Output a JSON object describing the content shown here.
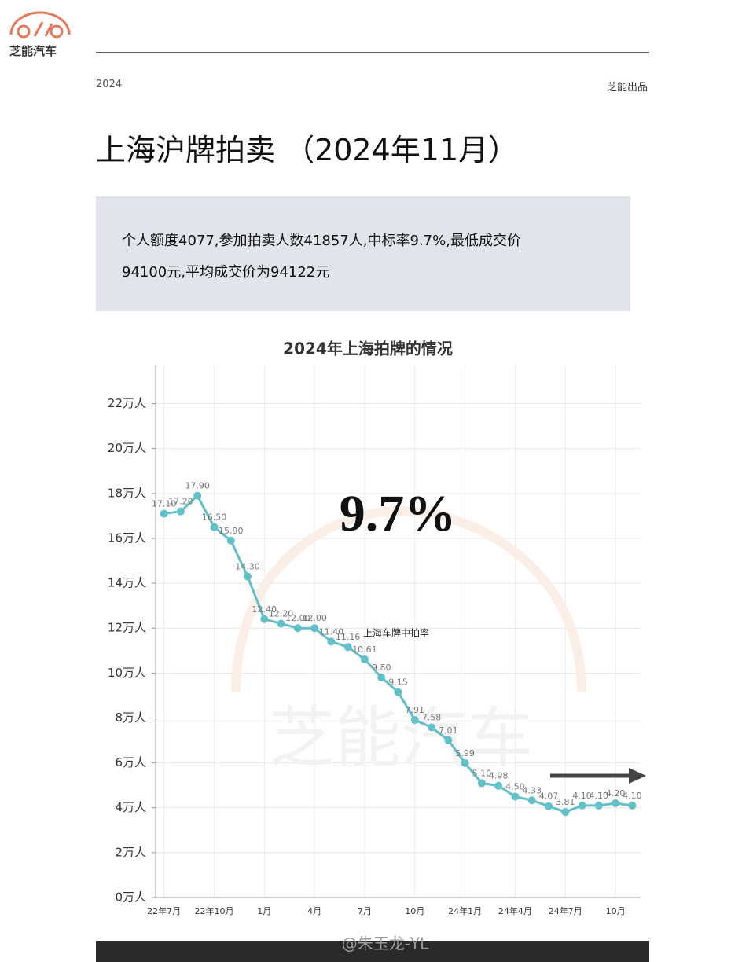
{
  "header": {
    "brand": "芝能汽车",
    "year": "2024",
    "publisher": "芝能出品"
  },
  "title": "上海沪牌拍卖 （2024年11月）",
  "summary": [
    "个人额度4077,参加拍卖人数41857人,中标率9.7%,最低成交价",
    "94100元,平均成交价为94122元"
  ],
  "chart_data": {
    "type": "line",
    "title": "2024年上海拍牌的情况",
    "annotation": "9.7%",
    "watermark": "芝能汽车",
    "categories": [
      "22年7月",
      null,
      null,
      "22年10月",
      null,
      null,
      "1月",
      null,
      null,
      "4月",
      null,
      null,
      "7月",
      null,
      null,
      "10月",
      null,
      null,
      "24年1月",
      null,
      null,
      "24年4月",
      null,
      null,
      "24年7月",
      null,
      null,
      "10月",
      null
    ],
    "series": [
      {
        "name": "上海车牌中拍率",
        "color": "#62c0c9",
        "values": [
          17.1,
          17.2,
          17.9,
          16.5,
          15.9,
          14.3,
          12.4,
          12.2,
          12.0,
          12.0,
          11.4,
          11.16,
          10.61,
          9.8,
          9.15,
          7.91,
          7.58,
          7.01,
          5.99,
          5.1,
          4.98,
          4.5,
          4.33,
          4.07,
          3.81,
          4.1,
          4.1,
          4.2,
          4.1
        ],
        "value_labels": [
          "17.10",
          "17.20",
          "17.90",
          "16.50",
          "15.90",
          "14.30",
          "12.40",
          "12.20",
          "12.00",
          "12.00",
          "11.40",
          "11.16",
          "10.61",
          "9.80",
          "9.15",
          "7.91",
          "7.58",
          "7.01",
          "5.99",
          "5.10",
          "4.98",
          "4.50",
          "4.33",
          "4.07",
          "3.81",
          "4.10",
          "4.10",
          "4.20",
          "4.10"
        ]
      }
    ],
    "ylim": [
      0,
      23.7
    ],
    "yticks": [
      {
        "value": 0,
        "label": "0万人"
      },
      {
        "value": 2,
        "label": "2万人"
      },
      {
        "value": 4,
        "label": "4万人"
      },
      {
        "value": 6,
        "label": "6万人"
      },
      {
        "value": 8,
        "label": "8万人"
      },
      {
        "value": 10,
        "label": "10万人"
      },
      {
        "value": 12,
        "label": "12万人"
      },
      {
        "value": 14,
        "label": "14万人"
      },
      {
        "value": 16,
        "label": "16万人"
      },
      {
        "value": 18,
        "label": "18万人"
      },
      {
        "value": 20,
        "label": "20万人"
      },
      {
        "value": 22,
        "label": "22万人"
      }
    ],
    "grid": true
  },
  "footer": "@朱玉龙-YL"
}
